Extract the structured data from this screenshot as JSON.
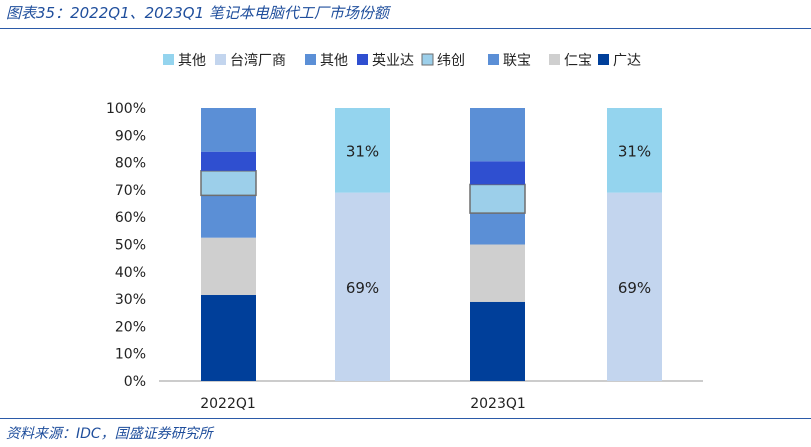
{
  "header": {
    "title": "图表35：2022Q1、2023Q1 笔记本电脑代工厂市场份额"
  },
  "footer": {
    "source": "资料来源：IDC，国盛证券研究所"
  },
  "chart_data": {
    "type": "bar",
    "stacked": true,
    "percent": true,
    "title": "图表35：2022Q1、2023Q1 笔记本电脑代工厂市场份额",
    "xlabel": "",
    "ylabel": "",
    "ylim": [
      0,
      100
    ],
    "yticks": [
      "0%",
      "10%",
      "20%",
      "30%",
      "40%",
      "50%",
      "60%",
      "70%",
      "80%",
      "90%",
      "100%"
    ],
    "categories": [
      "2022Q1",
      "2023Q1"
    ],
    "legend_position": "top",
    "legend": [
      "其他",
      "台湾厂商",
      "其他",
      "英业达",
      "纬创",
      "联宝",
      "仁宝",
      "广达"
    ],
    "columns": [
      {
        "label": "2022Q1",
        "group": "breakdown",
        "segments": [
          {
            "name": "广达",
            "value": 31.5,
            "color": "#003f9a"
          },
          {
            "name": "仁宝",
            "value": 21,
            "color": "#cfcfcf"
          },
          {
            "name": "联宝",
            "value": 15.5,
            "color": "#5b8fd6"
          },
          {
            "name": "纬创",
            "value": 9,
            "color": "#9ccfea"
          },
          {
            "name": "英业达",
            "value": 7,
            "color": "#2f4fd0"
          },
          {
            "name": "其他",
            "value": 16,
            "color": "#5b8fd6"
          }
        ]
      },
      {
        "label": "",
        "group": "summary",
        "segments": [
          {
            "name": "台湾厂商",
            "value": 69,
            "color": "#c3d5ee",
            "label": "69%"
          },
          {
            "name": "其他",
            "value": 31,
            "color": "#94d4ee",
            "label": "31%"
          }
        ]
      },
      {
        "label": "2023Q1",
        "group": "breakdown",
        "segments": [
          {
            "name": "广达",
            "value": 29,
            "color": "#003f9a"
          },
          {
            "name": "仁宝",
            "value": 21,
            "color": "#cfcfcf"
          },
          {
            "name": "联宝",
            "value": 11.5,
            "color": "#5b8fd6"
          },
          {
            "name": "纬创",
            "value": 10.5,
            "color": "#9ccfea"
          },
          {
            "name": "英业达",
            "value": 8.5,
            "color": "#2f4fd0"
          },
          {
            "name": "其他",
            "value": 19.5,
            "color": "#5b8fd6"
          }
        ]
      },
      {
        "label": "",
        "group": "summary",
        "segments": [
          {
            "name": "台湾厂商",
            "value": 69,
            "color": "#c3d5ee",
            "label": "69%"
          },
          {
            "name": "其他",
            "value": 31,
            "color": "#94d4ee",
            "label": "31%"
          }
        ]
      }
    ],
    "legend_colors": [
      "#94d4ee",
      "#c3d5ee",
      "#5b8fd6",
      "#2f4fd0",
      "#9ccfea",
      "#5b8fd6",
      "#cfcfcf",
      "#003f9a"
    ],
    "outlined_series": [
      "纬创"
    ]
  }
}
